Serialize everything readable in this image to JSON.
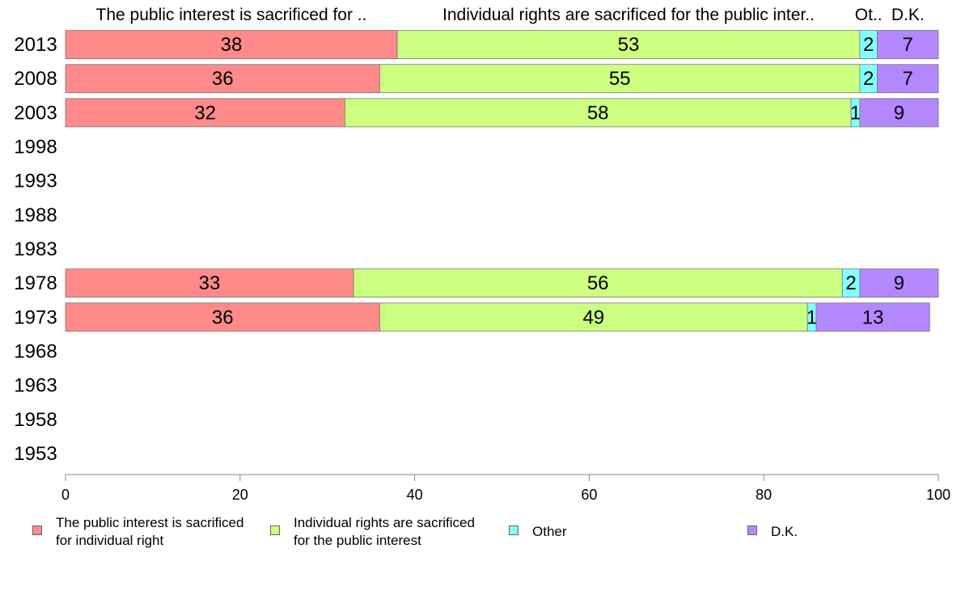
{
  "chart_data": {
    "type": "bar",
    "orientation": "horizontal",
    "stacked": true,
    "categories": [
      "2013",
      "2008",
      "2003",
      "1998",
      "1993",
      "1988",
      "1983",
      "1978",
      "1973",
      "1968",
      "1963",
      "1958",
      "1953"
    ],
    "series": [
      {
        "name": "The public interest is sacrificed for individual right",
        "column_header": "The public interest is sacrificed for ..",
        "legend_label": "The public interest is sacrificed\nfor individual right",
        "color": "#ff8a8a",
        "values": [
          38,
          36,
          32,
          null,
          null,
          null,
          null,
          33,
          36,
          null,
          null,
          null,
          null
        ]
      },
      {
        "name": "Individual rights are sacrificed for the public interest",
        "column_header": "Individual rights are sacrificed for the public inter..",
        "legend_label": "Individual rights are sacrificed\nfor the public interest",
        "color": "#ccff80",
        "values": [
          53,
          55,
          58,
          null,
          null,
          null,
          null,
          56,
          49,
          null,
          null,
          null,
          null
        ]
      },
      {
        "name": "Other",
        "column_header": "Ot..",
        "legend_label": "Other",
        "color": "#80ffff",
        "values": [
          2,
          2,
          1,
          null,
          null,
          null,
          null,
          2,
          1,
          null,
          null,
          null,
          null
        ]
      },
      {
        "name": "D.K.",
        "column_header": "D.K.",
        "legend_label": "D.K.",
        "color": "#b388ff",
        "values": [
          7,
          7,
          9,
          null,
          null,
          null,
          null,
          9,
          13,
          null,
          null,
          null,
          null
        ]
      }
    ],
    "xlim": [
      0,
      100
    ],
    "xticks": [
      0,
      20,
      40,
      60,
      80,
      100
    ],
    "grid": false,
    "legend_position": "bottom"
  }
}
